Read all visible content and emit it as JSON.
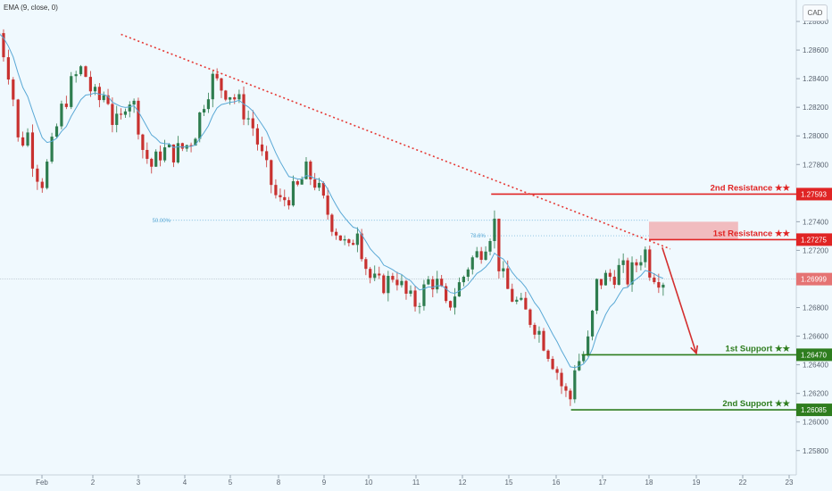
{
  "indicator_label": "EMA (9, close, 0)",
  "currency_button": "CAD",
  "colors": {
    "background": "#f0f9fe",
    "up": "#2e7d4f",
    "down": "#c8312f",
    "ema": "#5aa9d6",
    "resistance": "#e02424",
    "support": "#2e7d1e",
    "trendline": "#e53935"
  },
  "chart_data": {
    "type": "candlestick",
    "title": "",
    "y_axis": {
      "range": [
        1.2563,
        1.2895
      ],
      "ticks": [
        "1.28800",
        "1.28600",
        "1.28400",
        "1.28200",
        "1.28000",
        "1.27800",
        "1.27600",
        "1.27400",
        "1.27200",
        "1.27000",
        "1.26800",
        "1.26600",
        "1.26400",
        "1.26200",
        "1.26000",
        "1.25800"
      ]
    },
    "x_axis": {
      "ticks": [
        {
          "label": "Feb",
          "x": 0
        },
        {
          "label": "2",
          "x": 1
        },
        {
          "label": "3",
          "x": 2
        },
        {
          "label": "4",
          "x": 3
        },
        {
          "label": "5",
          "x": 4
        },
        {
          "label": "8",
          "x": 5
        },
        {
          "label": "9",
          "x": 6
        },
        {
          "label": "10",
          "x": 7
        },
        {
          "label": "11",
          "x": 8
        },
        {
          "label": "12",
          "x": 9
        },
        {
          "label": "15",
          "x": 10
        },
        {
          "label": "16",
          "x": 11
        },
        {
          "label": "17",
          "x": 12
        },
        {
          "label": "18",
          "x": 13
        },
        {
          "label": "19",
          "x": 14
        },
        {
          "label": "22",
          "x": 15
        },
        {
          "label": "23",
          "x": 16
        }
      ]
    },
    "price_anchors": [
      {
        "x": -0.85,
        "y": 1.2872
      },
      {
        "x": -0.6,
        "y": 1.2838
      },
      {
        "x": -0.45,
        "y": 1.279
      },
      {
        "x": -0.3,
        "y": 1.2805
      },
      {
        "x": -0.15,
        "y": 1.2778
      },
      {
        "x": 0.0,
        "y": 1.2768
      },
      {
        "x": 0.15,
        "y": 1.2785
      },
      {
        "x": 0.35,
        "y": 1.2815
      },
      {
        "x": 0.6,
        "y": 1.2838
      },
      {
        "x": 0.8,
        "y": 1.2848
      },
      {
        "x": 1.0,
        "y": 1.2828
      },
      {
        "x": 1.15,
        "y": 1.2825
      },
      {
        "x": 1.3,
        "y": 1.2832
      },
      {
        "x": 1.45,
        "y": 1.2808
      },
      {
        "x": 1.6,
        "y": 1.2808
      },
      {
        "x": 1.75,
        "y": 1.283
      },
      {
        "x": 1.95,
        "y": 1.2818
      },
      {
        "x": 2.1,
        "y": 1.279
      },
      {
        "x": 2.3,
        "y": 1.2778
      },
      {
        "x": 2.5,
        "y": 1.279
      },
      {
        "x": 2.75,
        "y": 1.2788
      },
      {
        "x": 3.0,
        "y": 1.2792
      },
      {
        "x": 3.2,
        "y": 1.28
      },
      {
        "x": 3.45,
        "y": 1.2828
      },
      {
        "x": 3.6,
        "y": 1.284
      },
      {
        "x": 3.8,
        "y": 1.2834
      },
      {
        "x": 4.0,
        "y": 1.283
      },
      {
        "x": 4.2,
        "y": 1.2822
      },
      {
        "x": 4.45,
        "y": 1.2808
      },
      {
        "x": 4.7,
        "y": 1.278
      },
      {
        "x": 4.9,
        "y": 1.2762
      },
      {
        "x": 5.0,
        "y": 1.2752
      },
      {
        "x": 5.2,
        "y": 1.2758
      },
      {
        "x": 5.4,
        "y": 1.2762
      },
      {
        "x": 5.6,
        "y": 1.2775
      },
      {
        "x": 5.8,
        "y": 1.2768
      },
      {
        "x": 6.0,
        "y": 1.2752
      },
      {
        "x": 6.2,
        "y": 1.2738
      },
      {
        "x": 6.4,
        "y": 1.2728
      },
      {
        "x": 6.55,
        "y": 1.2718
      },
      {
        "x": 6.65,
        "y": 1.2728
      },
      {
        "x": 6.75,
        "y": 1.2738
      },
      {
        "x": 6.85,
        "y": 1.272
      },
      {
        "x": 7.0,
        "y": 1.2702
      },
      {
        "x": 7.2,
        "y": 1.2695
      },
      {
        "x": 7.4,
        "y": 1.2698
      },
      {
        "x": 7.55,
        "y": 1.2705
      },
      {
        "x": 7.75,
        "y": 1.269
      },
      {
        "x": 7.95,
        "y": 1.2682
      },
      {
        "x": 8.1,
        "y": 1.2688
      },
      {
        "x": 8.3,
        "y": 1.27
      },
      {
        "x": 8.5,
        "y": 1.2695
      },
      {
        "x": 8.65,
        "y": 1.2678
      },
      {
        "x": 8.8,
        "y": 1.2688
      },
      {
        "x": 9.0,
        "y": 1.27
      },
      {
        "x": 9.15,
        "y": 1.2712
      },
      {
        "x": 9.35,
        "y": 1.2718
      },
      {
        "x": 9.55,
        "y": 1.273
      },
      {
        "x": 9.7,
        "y": 1.274
      },
      {
        "x": 9.8,
        "y": 1.2706
      },
      {
        "x": 10.0,
        "y": 1.269
      },
      {
        "x": 10.2,
        "y": 1.2682
      },
      {
        "x": 10.4,
        "y": 1.2674
      },
      {
        "x": 10.6,
        "y": 1.2666
      },
      {
        "x": 10.8,
        "y": 1.2652
      },
      {
        "x": 11.0,
        "y": 1.2638
      },
      {
        "x": 11.15,
        "y": 1.2622
      },
      {
        "x": 11.3,
        "y": 1.2615
      },
      {
        "x": 11.4,
        "y": 1.264
      },
      {
        "x": 11.55,
        "y": 1.2645
      },
      {
        "x": 11.65,
        "y": 1.265
      },
      {
        "x": 11.75,
        "y": 1.2665
      },
      {
        "x": 11.85,
        "y": 1.2695
      },
      {
        "x": 12.0,
        "y": 1.27
      },
      {
        "x": 12.2,
        "y": 1.2702
      },
      {
        "x": 12.4,
        "y": 1.2708
      },
      {
        "x": 12.55,
        "y": 1.27
      },
      {
        "x": 12.75,
        "y": 1.2712
      },
      {
        "x": 12.9,
        "y": 1.2722
      },
      {
        "x": 13.0,
        "y": 1.2708
      },
      {
        "x": 13.15,
        "y": 1.2703
      },
      {
        "x": 13.3,
        "y": 1.27
      }
    ],
    "ema_label": "EMA (9, close, 0)",
    "horizontal_levels": [
      {
        "label": "2nd Resistance ★★",
        "price_label": "1.27593",
        "y": 1.27593,
        "color": "#e02424",
        "x_start": 9.62
      },
      {
        "label": "1st Resistance ★★",
        "price_label": "1.27275",
        "y": 1.27275,
        "color": "#e02424",
        "zone": [
          1.27275,
          1.274
        ],
        "zone_x": [
          13.0,
          14.9
        ]
      },
      {
        "label": "1st Support ★★",
        "price_label": "1.26470",
        "y": 1.2647,
        "color": "#2e7d1e",
        "x_start": 11.55
      },
      {
        "label": "2nd Support ★★",
        "price_label": "1.26085",
        "y": 1.26085,
        "color": "#2e7d1e",
        "x_start": 11.32
      }
    ],
    "current_price": {
      "label": "1.26999",
      "y": 1.26999
    },
    "fibonacci": [
      {
        "label": "50.00%",
        "y": 1.2741
      },
      {
        "label": "78.6%",
        "y": 1.27302
      }
    ],
    "trendline": {
      "from": {
        "x": 1.62,
        "y": 1.2871
      },
      "to": {
        "x": 13.45,
        "y": 1.2721
      }
    },
    "projection_arrow": {
      "from": {
        "x": 13.28,
        "y": 1.2722
      },
      "to": {
        "x": 14.0,
        "y": 1.2648
      }
    }
  }
}
